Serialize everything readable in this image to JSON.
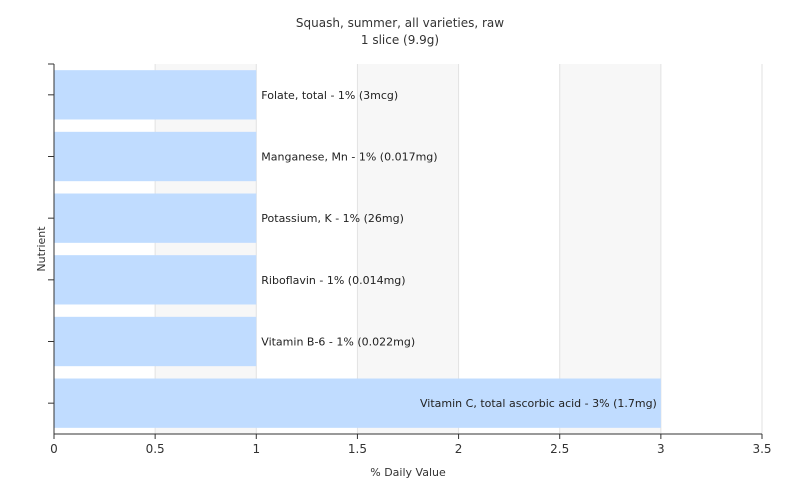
{
  "chart_data": {
    "type": "bar",
    "orientation": "horizontal",
    "title": "Squash, summer, all varieties, raw",
    "subtitle": "1 slice (9.9g)",
    "xlabel": "% Daily Value",
    "ylabel": "Nutrient",
    "xlim": [
      0,
      3.5
    ],
    "xticks": [
      "0",
      "0.5",
      "1",
      "1.5",
      "2",
      "2.5",
      "3",
      "3.5"
    ],
    "grid": true,
    "bar_color": "#c0dcff",
    "categories": [
      "Folate, total",
      "Manganese, Mn",
      "Potassium, K",
      "Riboflavin",
      "Vitamin B-6",
      "Vitamin C, total ascorbic acid"
    ],
    "values": [
      1,
      1,
      1,
      1,
      1,
      3
    ],
    "labels": [
      "Folate, total - 1% (3mcg)",
      "Manganese, Mn - 1% (0.017mg)",
      "Potassium, K - 1% (26mg)",
      "Riboflavin - 1% (0.014mg)",
      "Vitamin B-6 - 1% (0.022mg)",
      "Vitamin C, total ascorbic acid - 3% (1.7mg)"
    ]
  }
}
